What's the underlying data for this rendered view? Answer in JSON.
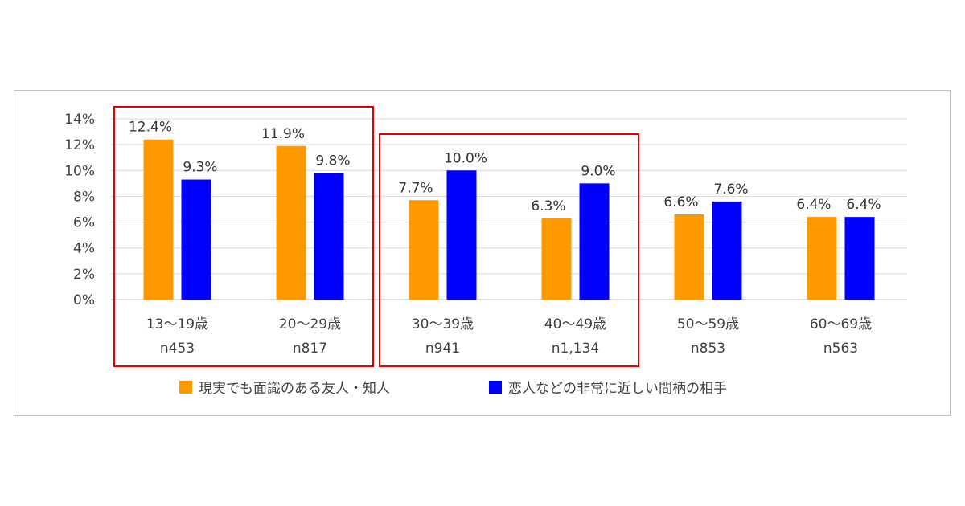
{
  "chart_data": {
    "type": "bar",
    "categories": [
      "13〜19歳",
      "20〜29歳",
      "30〜39歳",
      "40〜49歳",
      "50〜59歳",
      "60〜69歳"
    ],
    "sample_sizes": [
      "n453",
      "n817",
      "n941",
      "n1,134",
      "n853",
      "n563"
    ],
    "series": [
      {
        "name": "現実でも面識のある友人・知人",
        "values": [
          12.4,
          11.9,
          7.7,
          6.3,
          6.6,
          6.4
        ],
        "color": "#ff9900"
      },
      {
        "name": "恋人などの非常に近しい間柄の相手",
        "values": [
          9.3,
          9.8,
          10.0,
          9.0,
          7.6,
          6.4
        ],
        "color": "#0000ff"
      }
    ],
    "data_labels": [
      [
        "12.4%",
        "11.9%",
        "7.7%",
        "6.3%",
        "6.6%",
        "6.4%"
      ],
      [
        "9.3%",
        "9.8%",
        "10.0%",
        "9.0%",
        "7.6%",
        "6.4%"
      ]
    ],
    "yticks": [
      "0%",
      "2%",
      "4%",
      "6%",
      "8%",
      "10%",
      "12%",
      "14%"
    ],
    "ylim": [
      0,
      14
    ],
    "grid": true,
    "legend_position": "bottom",
    "highlight_groups": [
      {
        "categories": [
          "13〜19歳",
          "20〜29歳"
        ],
        "color": "#e60000"
      },
      {
        "categories": [
          "30〜39歳",
          "40〜49歳"
        ],
        "color": "#e60000"
      }
    ],
    "colors": {
      "gridline": "#d9d9d9",
      "axis": "#bfbfbf",
      "highlight": "#e60000"
    }
  }
}
